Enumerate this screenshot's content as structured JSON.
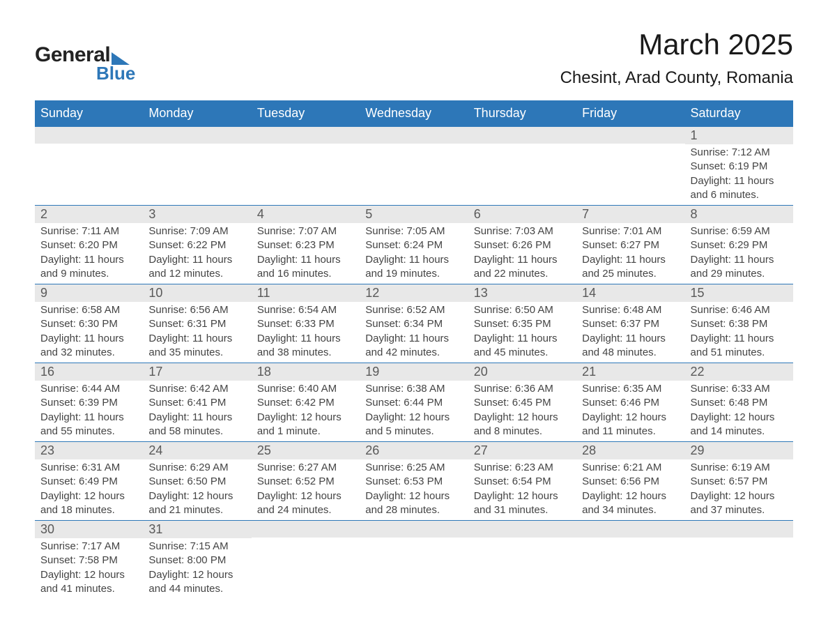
{
  "brand": {
    "word1": "General",
    "word2": "Blue",
    "brand_color": "#2d77b8"
  },
  "title": "March 2025",
  "location": "Chesint, Arad County, Romania",
  "colors": {
    "header_bg": "#2d77b8",
    "header_text": "#ffffff",
    "daynum_bg": "#e8e8e8",
    "daynum_text": "#595959",
    "body_text": "#444444",
    "row_border": "#2d77b8",
    "page_bg": "#ffffff"
  },
  "typography": {
    "title_fontsize": 42,
    "location_fontsize": 24,
    "weekday_fontsize": 18,
    "daynum_fontsize": 18,
    "body_fontsize": 15
  },
  "weekdays": [
    "Sunday",
    "Monday",
    "Tuesday",
    "Wednesday",
    "Thursday",
    "Friday",
    "Saturday"
  ],
  "labels": {
    "sunrise": "Sunrise:",
    "sunset": "Sunset:",
    "daylight": "Daylight:"
  },
  "weeks": [
    [
      {
        "blank": true
      },
      {
        "blank": true
      },
      {
        "blank": true
      },
      {
        "blank": true
      },
      {
        "blank": true
      },
      {
        "blank": true
      },
      {
        "day": "1",
        "sunrise": "7:12 AM",
        "sunset": "6:19 PM",
        "daylight": "11 hours and 6 minutes."
      }
    ],
    [
      {
        "day": "2",
        "sunrise": "7:11 AM",
        "sunset": "6:20 PM",
        "daylight": "11 hours and 9 minutes."
      },
      {
        "day": "3",
        "sunrise": "7:09 AM",
        "sunset": "6:22 PM",
        "daylight": "11 hours and 12 minutes."
      },
      {
        "day": "4",
        "sunrise": "7:07 AM",
        "sunset": "6:23 PM",
        "daylight": "11 hours and 16 minutes."
      },
      {
        "day": "5",
        "sunrise": "7:05 AM",
        "sunset": "6:24 PM",
        "daylight": "11 hours and 19 minutes."
      },
      {
        "day": "6",
        "sunrise": "7:03 AM",
        "sunset": "6:26 PM",
        "daylight": "11 hours and 22 minutes."
      },
      {
        "day": "7",
        "sunrise": "7:01 AM",
        "sunset": "6:27 PM",
        "daylight": "11 hours and 25 minutes."
      },
      {
        "day": "8",
        "sunrise": "6:59 AM",
        "sunset": "6:29 PM",
        "daylight": "11 hours and 29 minutes."
      }
    ],
    [
      {
        "day": "9",
        "sunrise": "6:58 AM",
        "sunset": "6:30 PM",
        "daylight": "11 hours and 32 minutes."
      },
      {
        "day": "10",
        "sunrise": "6:56 AM",
        "sunset": "6:31 PM",
        "daylight": "11 hours and 35 minutes."
      },
      {
        "day": "11",
        "sunrise": "6:54 AM",
        "sunset": "6:33 PM",
        "daylight": "11 hours and 38 minutes."
      },
      {
        "day": "12",
        "sunrise": "6:52 AM",
        "sunset": "6:34 PM",
        "daylight": "11 hours and 42 minutes."
      },
      {
        "day": "13",
        "sunrise": "6:50 AM",
        "sunset": "6:35 PM",
        "daylight": "11 hours and 45 minutes."
      },
      {
        "day": "14",
        "sunrise": "6:48 AM",
        "sunset": "6:37 PM",
        "daylight": "11 hours and 48 minutes."
      },
      {
        "day": "15",
        "sunrise": "6:46 AM",
        "sunset": "6:38 PM",
        "daylight": "11 hours and 51 minutes."
      }
    ],
    [
      {
        "day": "16",
        "sunrise": "6:44 AM",
        "sunset": "6:39 PM",
        "daylight": "11 hours and 55 minutes."
      },
      {
        "day": "17",
        "sunrise": "6:42 AM",
        "sunset": "6:41 PM",
        "daylight": "11 hours and 58 minutes."
      },
      {
        "day": "18",
        "sunrise": "6:40 AM",
        "sunset": "6:42 PM",
        "daylight": "12 hours and 1 minute."
      },
      {
        "day": "19",
        "sunrise": "6:38 AM",
        "sunset": "6:44 PM",
        "daylight": "12 hours and 5 minutes."
      },
      {
        "day": "20",
        "sunrise": "6:36 AM",
        "sunset": "6:45 PM",
        "daylight": "12 hours and 8 minutes."
      },
      {
        "day": "21",
        "sunrise": "6:35 AM",
        "sunset": "6:46 PM",
        "daylight": "12 hours and 11 minutes."
      },
      {
        "day": "22",
        "sunrise": "6:33 AM",
        "sunset": "6:48 PM",
        "daylight": "12 hours and 14 minutes."
      }
    ],
    [
      {
        "day": "23",
        "sunrise": "6:31 AM",
        "sunset": "6:49 PM",
        "daylight": "12 hours and 18 minutes."
      },
      {
        "day": "24",
        "sunrise": "6:29 AM",
        "sunset": "6:50 PM",
        "daylight": "12 hours and 21 minutes."
      },
      {
        "day": "25",
        "sunrise": "6:27 AM",
        "sunset": "6:52 PM",
        "daylight": "12 hours and 24 minutes."
      },
      {
        "day": "26",
        "sunrise": "6:25 AM",
        "sunset": "6:53 PM",
        "daylight": "12 hours and 28 minutes."
      },
      {
        "day": "27",
        "sunrise": "6:23 AM",
        "sunset": "6:54 PM",
        "daylight": "12 hours and 31 minutes."
      },
      {
        "day": "28",
        "sunrise": "6:21 AM",
        "sunset": "6:56 PM",
        "daylight": "12 hours and 34 minutes."
      },
      {
        "day": "29",
        "sunrise": "6:19 AM",
        "sunset": "6:57 PM",
        "daylight": "12 hours and 37 minutes."
      }
    ],
    [
      {
        "day": "30",
        "sunrise": "7:17 AM",
        "sunset": "7:58 PM",
        "daylight": "12 hours and 41 minutes."
      },
      {
        "day": "31",
        "sunrise": "7:15 AM",
        "sunset": "8:00 PM",
        "daylight": "12 hours and 44 minutes."
      },
      {
        "blank": true
      },
      {
        "blank": true
      },
      {
        "blank": true
      },
      {
        "blank": true
      },
      {
        "blank": true
      }
    ]
  ]
}
